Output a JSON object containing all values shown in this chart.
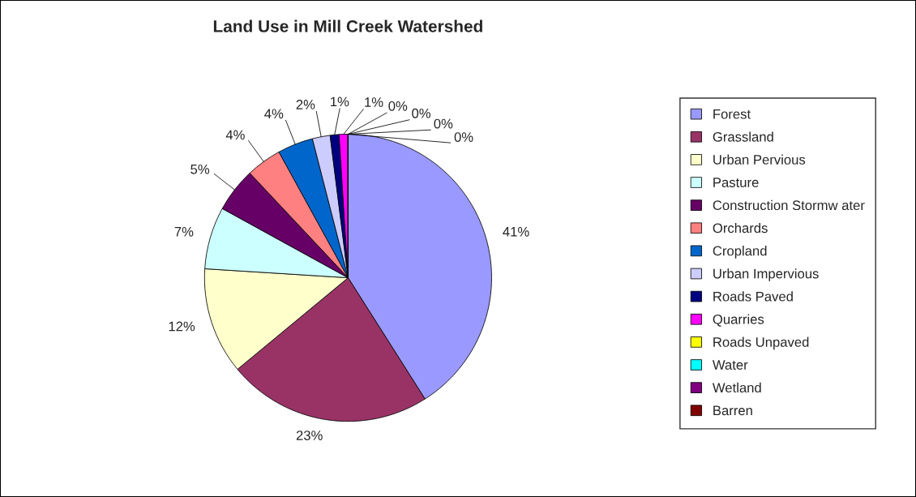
{
  "chart_data": {
    "type": "pie",
    "title": "Land Use in Mill Creek Watershed",
    "categories": [
      "Forest",
      "Grassland",
      "Urban Pervious",
      "Pasture",
      "Construction Stormw ater",
      "Orchards",
      "Cropland",
      "Urban Impervious",
      "Roads Paved",
      "Quarries",
      "Roads Unpaved",
      "Water",
      "Wetland",
      "Barren"
    ],
    "values": [
      41,
      23,
      12,
      7,
      5,
      4,
      4,
      2,
      1,
      1,
      0,
      0,
      0,
      0
    ],
    "colors": [
      "#9999ff",
      "#993366",
      "#ffffcc",
      "#ccffff",
      "#660066",
      "#ff8080",
      "#0066cc",
      "#ccccff",
      "#000080",
      "#ff00ff",
      "#ffff00",
      "#00ffff",
      "#800080",
      "#800000"
    ],
    "value_labels": [
      "41%",
      "23%",
      "12%",
      "7%",
      "5%",
      "4%",
      "4%",
      "2%",
      "1%",
      "1%",
      "0%",
      "0%",
      "0%",
      "0%"
    ],
    "legend": "right"
  }
}
